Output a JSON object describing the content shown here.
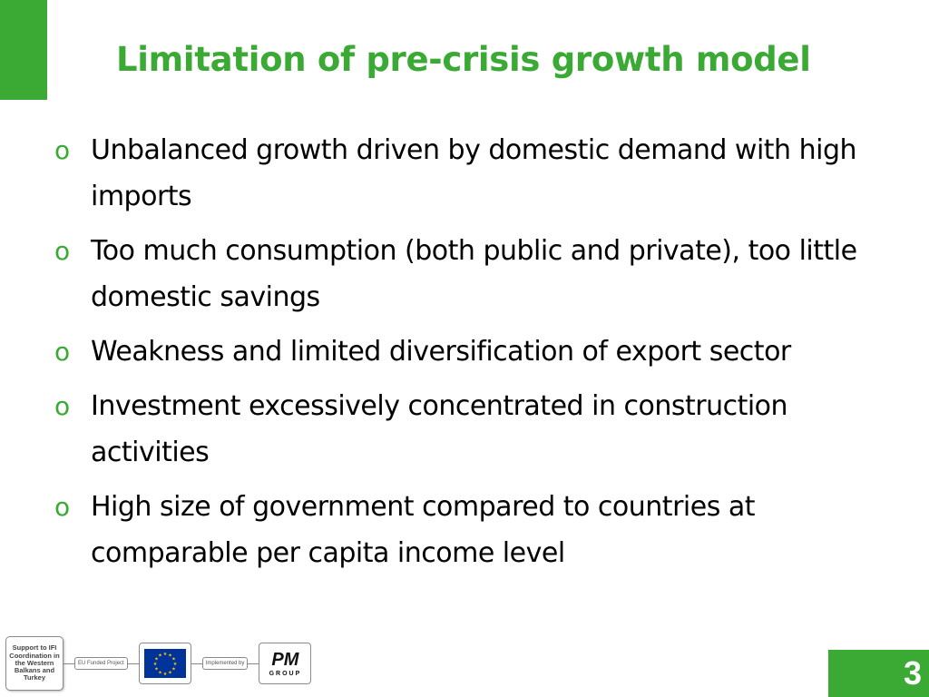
{
  "slide": {
    "title": "Limitation of pre-crisis growth model",
    "bullet_marker": "o",
    "bullets": [
      {
        "text": "Unbalanced growth driven by domestic demand with high imports"
      },
      {
        "text": "Too much consumption (both public and private), too little domestic savings"
      },
      {
        "text": "Weakness and limited diversification of export sector"
      },
      {
        "text": "Investment excessively concentrated in construction activities"
      },
      {
        "text": "High size of government compared to countries at comparable per capita income level"
      }
    ],
    "page_number": "3"
  },
  "footer": {
    "project_label": "Support to IFI Coordination in the Western Balkans and Turkey",
    "eu_funded_label": "EU Funded Project",
    "implemented_by_label": "Implemented by",
    "pm_logo_text": "PM",
    "pm_logo_word": "GROUP"
  },
  "colors": {
    "accent_green": "#3aaa35",
    "eu_blue": "#003399",
    "eu_gold": "#ffcc00"
  }
}
